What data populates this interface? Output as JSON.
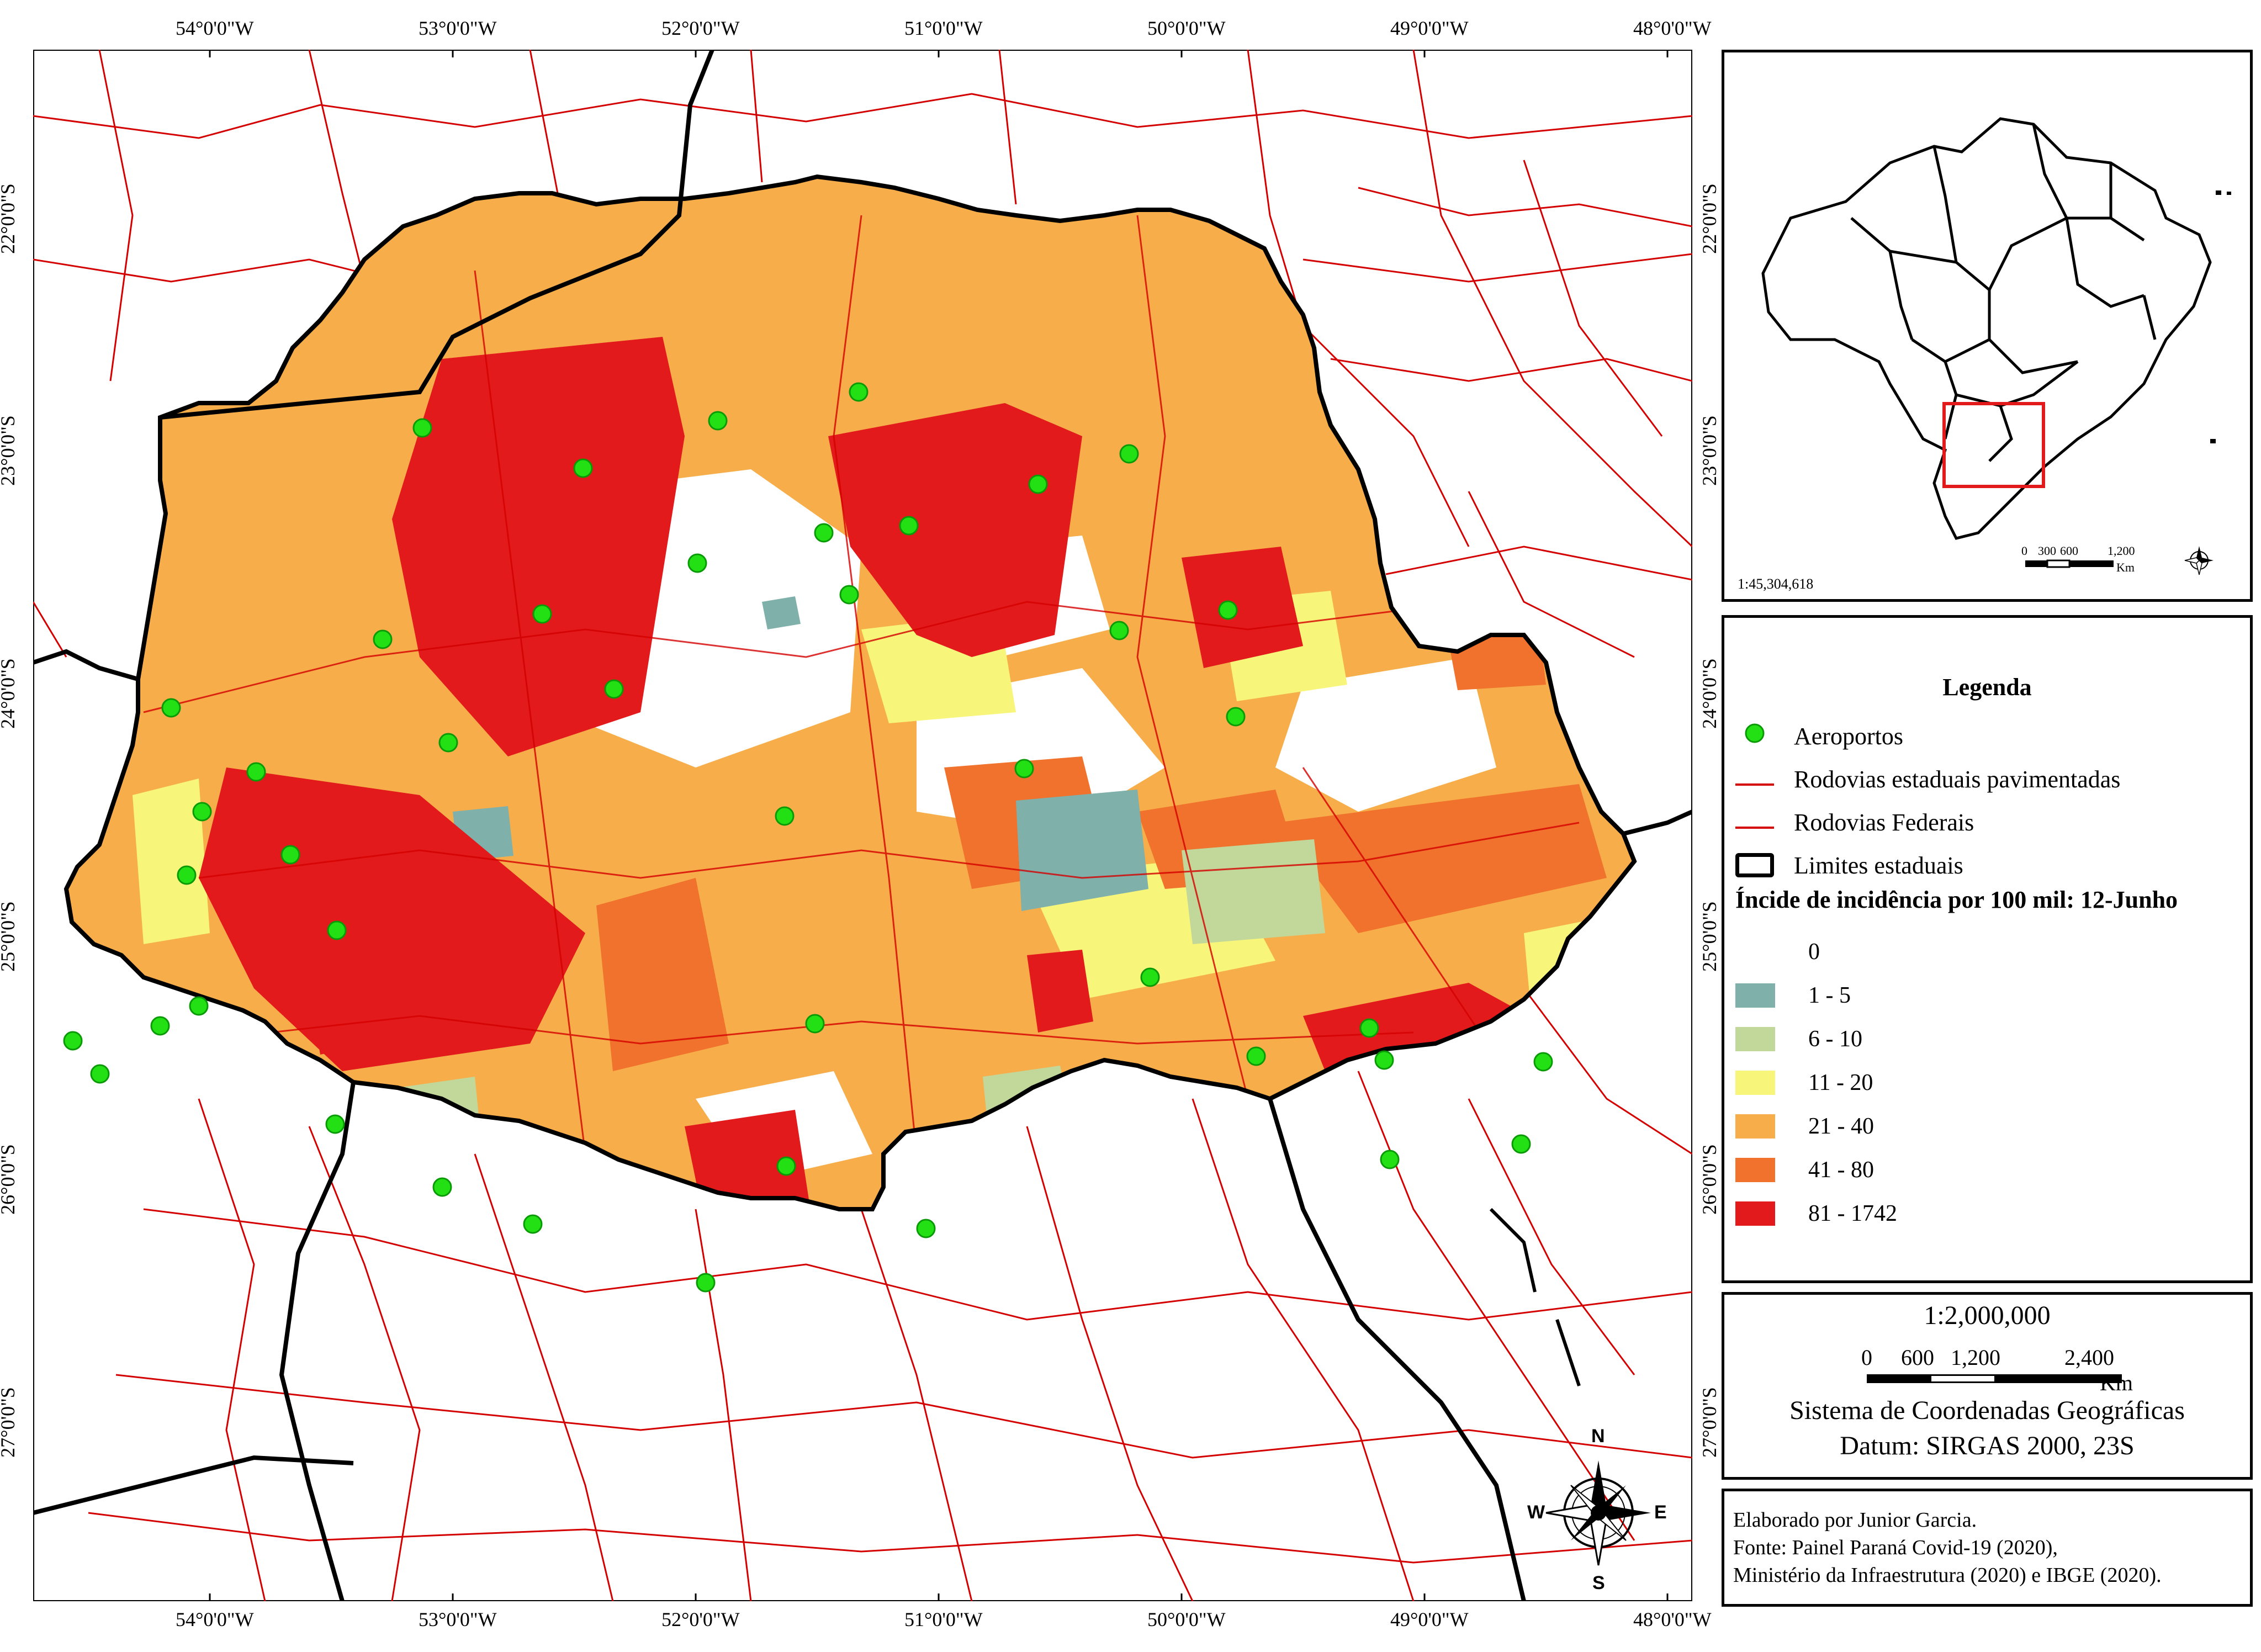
{
  "map": {
    "lon_ticks": [
      "54°0'0\"W",
      "53°0'0\"W",
      "52°0'0\"W",
      "51°0'0\"W",
      "50°0'0\"W",
      "49°0'0\"W",
      "48°0'0\"W"
    ],
    "lat_ticks": [
      "22°0'0\"S",
      "23°0'0\"S",
      "24°0'0\"S",
      "25°0'0\"S",
      "26°0'0\"S",
      "27°0'0\"S"
    ],
    "compass": {
      "n": "N",
      "s": "S",
      "e": "E",
      "w": "W"
    }
  },
  "inset": {
    "scale_text": "1:45,304,618",
    "scale_labels": [
      "0",
      "300",
      "600",
      "1,200"
    ],
    "scale_unit": "Km",
    "compass": {
      "n": "N",
      "s": "S",
      "e": "E",
      "w": "W"
    }
  },
  "legend": {
    "title": "Legenda",
    "items": [
      {
        "label": "Aeroportos",
        "symbol": "airport-dot",
        "color": "#22e014"
      },
      {
        "label": "Rodovias estaduais pavimentadas",
        "symbol": "line",
        "color": "#d40000"
      },
      {
        "label": "Rodovias Federais",
        "symbol": "line",
        "color": "#d40000"
      },
      {
        "label": "Limites estaduais",
        "symbol": "box",
        "color": "#000000"
      }
    ],
    "classes_title": "Íncide de incidência por 100 mil: 12-Junho",
    "classes": [
      {
        "label": "0",
        "color": "#ffffff"
      },
      {
        "label": "1 - 5",
        "color": "#7fb0aa"
      },
      {
        "label": "6 - 10",
        "color": "#c2d89a"
      },
      {
        "label": "11 - 20",
        "color": "#f7f57a"
      },
      {
        "label": "21 - 40",
        "color": "#f7ae4a"
      },
      {
        "label": "41 - 80",
        "color": "#f0722c"
      },
      {
        "label": "81 - 1742",
        "color": "#e31a1c"
      }
    ]
  },
  "scale_panel": {
    "scale_text": "1:2,000,000",
    "bar_labels": [
      "0",
      "600",
      "1,200",
      "2,400"
    ],
    "unit": "Km",
    "crs_line1": "Sistema de Coordenadas Geográficas",
    "crs_line2": "Datum: SIRGAS 2000, 23S"
  },
  "credits": {
    "line1": "Elaborado por Junior Garcia.",
    "line2": "Fonte: Painel Paraná Covid-19 (2020),",
    "line3": "Ministério da Infraestrutura (2020) e IBGE (2020)."
  }
}
